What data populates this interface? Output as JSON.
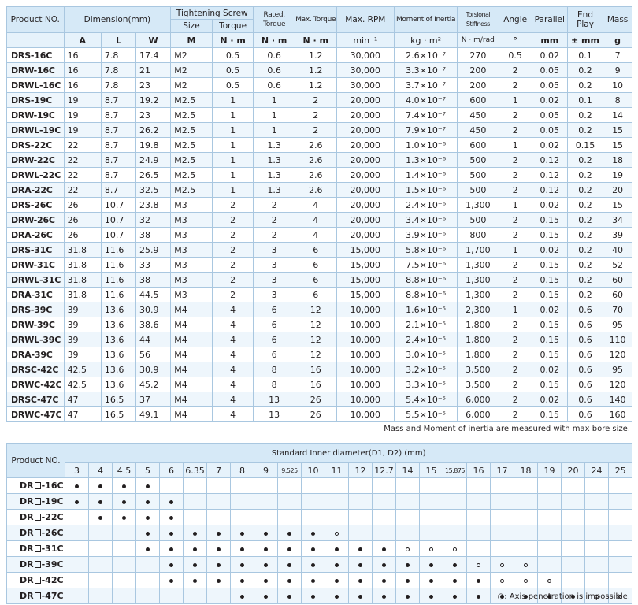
{
  "spec": {
    "headers": {
      "product": "Product NO.",
      "dimension": "Dimension(mm)",
      "screw": "Tightening Screw",
      "size": "Size",
      "torque": "Torque",
      "rated_torque": "Rated. Torque",
      "max_torque": "Max. Torque",
      "max_rpm": "Max. RPM",
      "inertia": "Moment of Inertia",
      "stiffness": "Torsional Stiffness",
      "angle": "Angle",
      "parallel": "Parallel",
      "end_play": "End Play",
      "mass": "Mass"
    },
    "units": {
      "a": "A",
      "l": "L",
      "w": "W",
      "m": "M",
      "nm1": "N · m",
      "nm2": "N · m",
      "nm3": "N · m",
      "rpm": "min⁻¹",
      "kgm2": "kg · m²",
      "nmrad": "N · m/rad",
      "deg": "°",
      "mm": "mm",
      "pmmm": "± mm",
      "g": "g"
    },
    "rows": [
      [
        "DRS-16C",
        "16",
        "7.8",
        "17.4",
        "M2",
        "0.5",
        "0.6",
        "1.2",
        "30,000",
        "2.6×10⁻⁷",
        "270",
        "0.5",
        "0.02",
        "0.1",
        "7"
      ],
      [
        "DRW-16C",
        "16",
        "7.8",
        "21",
        "M2",
        "0.5",
        "0.6",
        "1.2",
        "30,000",
        "3.3×10⁻⁷",
        "200",
        "2",
        "0.05",
        "0.2",
        "9"
      ],
      [
        "DRWL-16C",
        "16",
        "7.8",
        "23",
        "M2",
        "0.5",
        "0.6",
        "1.2",
        "30,000",
        "3.7×10⁻⁷",
        "200",
        "2",
        "0.05",
        "0.2",
        "10"
      ],
      [
        "DRS-19C",
        "19",
        "8.7",
        "19.2",
        "M2.5",
        "1",
        "1",
        "2",
        "20,000",
        "4.0×10⁻⁷",
        "600",
        "1",
        "0.02",
        "0.1",
        "8"
      ],
      [
        "DRW-19C",
        "19",
        "8.7",
        "23",
        "M2.5",
        "1",
        "1",
        "2",
        "20,000",
        "7.4×10⁻⁷",
        "450",
        "2",
        "0.05",
        "0.2",
        "14"
      ],
      [
        "DRWL-19C",
        "19",
        "8.7",
        "26.2",
        "M2.5",
        "1",
        "1",
        "2",
        "20,000",
        "7.9×10⁻⁷",
        "450",
        "2",
        "0.05",
        "0.2",
        "15"
      ],
      [
        "DRS-22C",
        "22",
        "8.7",
        "19.8",
        "M2.5",
        "1",
        "1.3",
        "2.6",
        "20,000",
        "1.0×10⁻⁶",
        "600",
        "1",
        "0.02",
        "0.15",
        "15"
      ],
      [
        "DRW-22C",
        "22",
        "8.7",
        "24.9",
        "M2.5",
        "1",
        "1.3",
        "2.6",
        "20,000",
        "1.3×10⁻⁶",
        "500",
        "2",
        "0.12",
        "0.2",
        "18"
      ],
      [
        "DRWL-22C",
        "22",
        "8.7",
        "26.5",
        "M2.5",
        "1",
        "1.3",
        "2.6",
        "20,000",
        "1.4×10⁻⁶",
        "500",
        "2",
        "0.12",
        "0.2",
        "19"
      ],
      [
        "DRA-22C",
        "22",
        "8.7",
        "32.5",
        "M2.5",
        "1",
        "1.3",
        "2.6",
        "20,000",
        "1.5×10⁻⁶",
        "500",
        "2",
        "0.12",
        "0.2",
        "20"
      ],
      [
        "DRS-26C",
        "26",
        "10.7",
        "23.8",
        "M3",
        "2",
        "2",
        "4",
        "20,000",
        "2.4×10⁻⁶",
        "1,300",
        "1",
        "0.02",
        "0.2",
        "15"
      ],
      [
        "DRW-26C",
        "26",
        "10.7",
        "32",
        "M3",
        "2",
        "2",
        "4",
        "20,000",
        "3.4×10⁻⁶",
        "500",
        "2",
        "0.15",
        "0.2",
        "34"
      ],
      [
        "DRA-26C",
        "26",
        "10.7",
        "38",
        "M3",
        "2",
        "2",
        "4",
        "20,000",
        "3.9×10⁻⁶",
        "800",
        "2",
        "0.15",
        "0.2",
        "39"
      ],
      [
        "DRS-31C",
        "31.8",
        "11.6",
        "25.9",
        "M3",
        "2",
        "3",
        "6",
        "15,000",
        "5.8×10⁻⁶",
        "1,700",
        "1",
        "0.02",
        "0.2",
        "40"
      ],
      [
        "DRW-31C",
        "31.8",
        "11.6",
        "33",
        "M3",
        "2",
        "3",
        "6",
        "15,000",
        "7.5×10⁻⁶",
        "1,300",
        "2",
        "0.15",
        "0.2",
        "52"
      ],
      [
        "DRWL-31C",
        "31.8",
        "11.6",
        "38",
        "M3",
        "2",
        "3",
        "6",
        "15,000",
        "8.8×10⁻⁶",
        "1,300",
        "2",
        "0.15",
        "0.2",
        "60"
      ],
      [
        "DRA-31C",
        "31.8",
        "11.6",
        "44.5",
        "M3",
        "2",
        "3",
        "6",
        "15,000",
        "8.8×10⁻⁶",
        "1,300",
        "2",
        "0.15",
        "0.2",
        "60"
      ],
      [
        "DRS-39C",
        "39",
        "13.6",
        "30.9",
        "M4",
        "4",
        "6",
        "12",
        "10,000",
        "1.6×10⁻⁵",
        "2,300",
        "1",
        "0.02",
        "0.6",
        "70"
      ],
      [
        "DRW-39C",
        "39",
        "13.6",
        "38.6",
        "M4",
        "4",
        "6",
        "12",
        "10,000",
        "2.1×10⁻⁵",
        "1,800",
        "2",
        "0.15",
        "0.6",
        "95"
      ],
      [
        "DRWL-39C",
        "39",
        "13.6",
        "44",
        "M4",
        "4",
        "6",
        "12",
        "10,000",
        "2.4×10⁻⁵",
        "1,800",
        "2",
        "0.15",
        "0.6",
        "110"
      ],
      [
        "DRA-39C",
        "39",
        "13.6",
        "56",
        "M4",
        "4",
        "6",
        "12",
        "10,000",
        "3.0×10⁻⁵",
        "1,800",
        "2",
        "0.15",
        "0.6",
        "120"
      ],
      [
        "DRSC-42C",
        "42.5",
        "13.6",
        "30.9",
        "M4",
        "4",
        "8",
        "16",
        "10,000",
        "3.2×10⁻⁵",
        "3,500",
        "2",
        "0.02",
        "0.6",
        "95"
      ],
      [
        "DRWC-42C",
        "42.5",
        "13.6",
        "45.2",
        "M4",
        "4",
        "8",
        "16",
        "10,000",
        "3.3×10⁻⁵",
        "3,500",
        "2",
        "0.15",
        "0.6",
        "120"
      ],
      [
        "DRSC-47C",
        "47",
        "16.5",
        "37",
        "M4",
        "4",
        "13",
        "26",
        "10,000",
        "5.4×10⁻⁵",
        "6,000",
        "2",
        "0.02",
        "0.6",
        "140"
      ],
      [
        "DRWC-47C",
        "47",
        "16.5",
        "49.1",
        "M4",
        "4",
        "13",
        "26",
        "10,000",
        "5.5×10⁻⁵",
        "6,000",
        "2",
        "0.15",
        "0.6",
        "160"
      ]
    ],
    "note": "Mass and Moment of inertia are measured with max bore size."
  },
  "bore": {
    "product_header": "Product NO.",
    "title": "Standard Inner diameter(D1, D2) (mm)",
    "diameters": [
      "3",
      "4",
      "4.5",
      "5",
      "6",
      "6.35",
      "7",
      "8",
      "9",
      "9.525",
      "10",
      "11",
      "12",
      "12.7",
      "14",
      "15",
      "15.875",
      "16",
      "17",
      "18",
      "19",
      "20",
      "24",
      "25"
    ],
    "rows": [
      {
        "prefix": "DR",
        "suffix": "-16C",
        "cells": "●●●●...................."
      },
      {
        "prefix": "DR",
        "suffix": "-19C",
        "cells": "●●●●●..................."
      },
      {
        "prefix": "DR",
        "suffix": "-22C",
        "cells": ".●●●●..................."
      },
      {
        "prefix": "DR",
        "suffix": "-26C",
        "cells": "...●●●●●●●●○............"
      },
      {
        "prefix": "DR",
        "suffix": "-31C",
        "cells": "...●●●●●●●●●●●○○○......."
      },
      {
        "prefix": "DR",
        "suffix": "-39C",
        "cells": "....●●●●●●●●●●●●●○○○...."
      },
      {
        "prefix": "DR",
        "suffix": "-42C",
        "cells": "....●●●●●●●●●●●●●●○○○..."
      },
      {
        "prefix": "DR",
        "suffix": "-47C",
        "cells": ".......●●●●●●●●●●●●●●●○○"
      }
    ],
    "legend_symbol": "○",
    "note": ": Axis penetration is impossible."
  }
}
